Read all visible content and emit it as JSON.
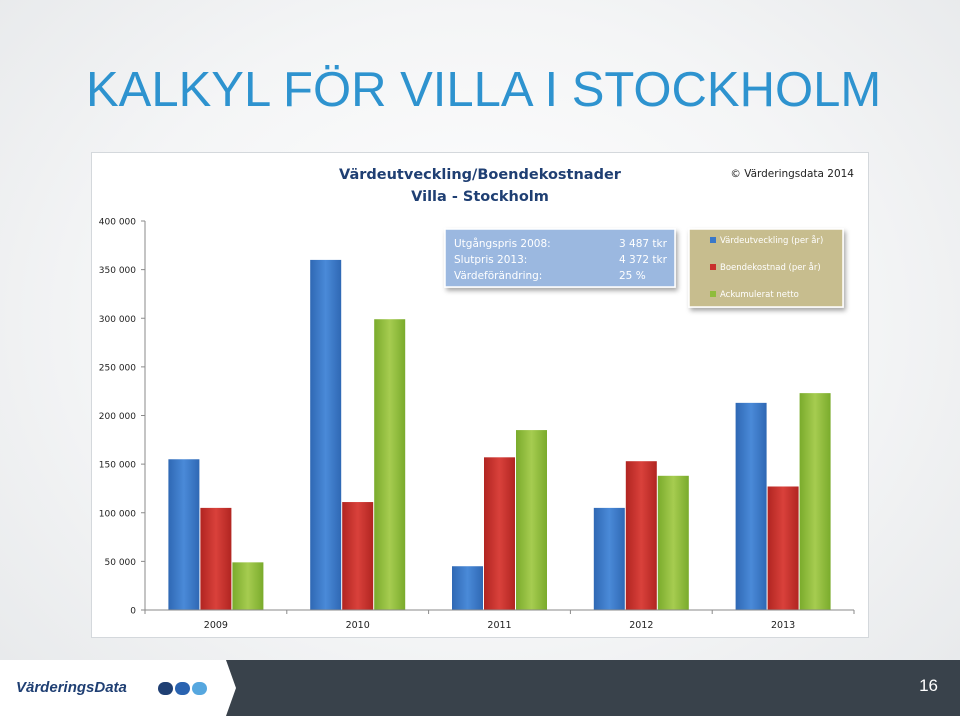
{
  "slide": {
    "title": "KALKYL FÖR VILLA I STOCKHOLM",
    "page_number": "16",
    "logo_text": "VärderingsData"
  },
  "colors": {
    "title": "#2e93cf",
    "series": [
      "#3a78c9",
      "#c9302c",
      "#8fbc3c"
    ],
    "info_box": "#9bb8e0",
    "legend_box": "#c7bd8e",
    "footer": "#39424b",
    "logo_dots": [
      "#1f3f73",
      "#2a63b0",
      "#56a7df"
    ]
  },
  "chart_data": {
    "type": "bar",
    "title": "Värdeutveckling/Boendekostnader",
    "subtitle": "Villa - Stockholm",
    "copyright": "© Värderingsdata 2014",
    "categories": [
      "2009",
      "2010",
      "2011",
      "2012",
      "2013"
    ],
    "series": [
      {
        "name": "Värdeutveckling (per år)",
        "values": [
          155000,
          360000,
          45000,
          105000,
          213000
        ]
      },
      {
        "name": "Boendekostnad (per år)",
        "values": [
          105000,
          111000,
          157000,
          153000,
          127000
        ]
      },
      {
        "name": "Ackumulerat netto",
        "values": [
          49000,
          299000,
          185000,
          138000,
          223000
        ]
      }
    ],
    "ylim": [
      0,
      400000
    ],
    "yticks": [
      0,
      50000,
      100000,
      150000,
      200000,
      250000,
      300000,
      350000,
      400000
    ],
    "ytick_labels": [
      "0",
      "50 000",
      "100 000",
      "150 000",
      "200 000",
      "250 000",
      "300 000",
      "350 000",
      "400 000"
    ],
    "grid": false,
    "legend_position": "top-right",
    "info_box": [
      {
        "label": "Utgångspris 2008:",
        "value": "3 487 tkr"
      },
      {
        "label": "Slutpris 2013:",
        "value": "4 372 tkr"
      },
      {
        "label": "Värdeförändring:",
        "value": "25 %"
      }
    ]
  }
}
